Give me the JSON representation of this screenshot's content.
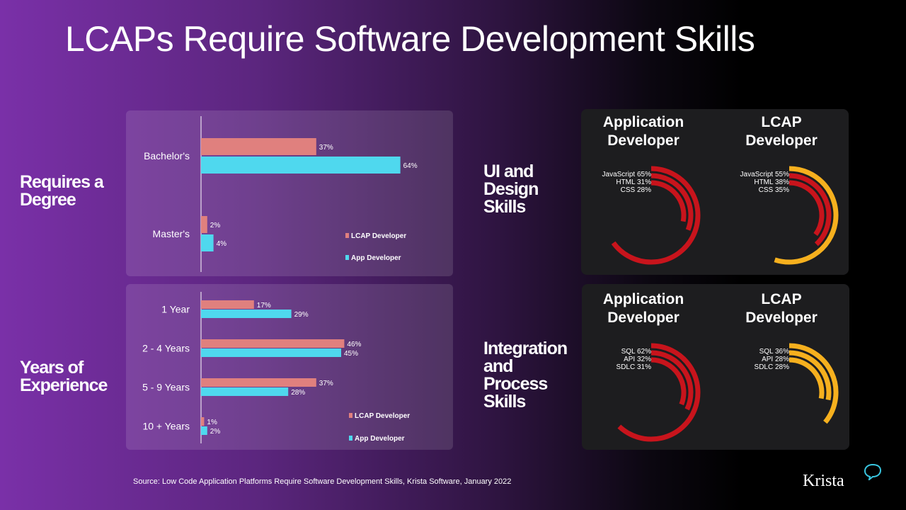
{
  "title": "LCAPs Require Software Development Skills",
  "labels": {
    "degree": [
      "Requires a",
      "Degree"
    ],
    "experience": [
      "Years of",
      "Experience"
    ],
    "ui": [
      "UI and",
      "Design",
      "Skills"
    ],
    "integration": [
      "Integration",
      "and",
      "Process",
      "Skills"
    ]
  },
  "columns": {
    "app": [
      "Application",
      "Developer"
    ],
    "lcap": [
      "LCAP",
      "Developer"
    ]
  },
  "colors": {
    "lcap": "#e0807e",
    "app": "#4fd8ee",
    "ring_red": "#c8141c",
    "ring_gold": "#f6b01e"
  },
  "chart_data": [
    {
      "id": "degree",
      "type": "bar",
      "orientation": "horizontal",
      "categories": [
        "Bachelor's",
        "Master's"
      ],
      "series": [
        {
          "name": "LCAP Developer",
          "values": [
            37,
            2
          ],
          "labels": [
            "37%",
            "2%"
          ]
        },
        {
          "name": "App Developer",
          "values": [
            64,
            4
          ],
          "labels": [
            "64%",
            "4%"
          ]
        }
      ]
    },
    {
      "id": "experience",
      "type": "bar",
      "orientation": "horizontal",
      "categories": [
        "1 Year",
        "2 - 4 Years",
        "5 - 9 Years",
        "10 + Years"
      ],
      "series": [
        {
          "name": "LCAP Developer",
          "values": [
            17,
            46,
            37,
            1
          ],
          "labels": [
            "17%",
            "46%",
            "37%",
            "1%"
          ]
        },
        {
          "name": "App Developer",
          "values": [
            29,
            45,
            28,
            2
          ],
          "labels": [
            "29%",
            "45%",
            "28%",
            "2%"
          ]
        }
      ]
    },
    {
      "id": "ui-app",
      "type": "radial-bar",
      "items": [
        {
          "label": "JavaScript 65%",
          "value": 65
        },
        {
          "label": "HTML 31%",
          "value": 31
        },
        {
          "label": "CSS 28%",
          "value": 28
        }
      ]
    },
    {
      "id": "ui-lcap",
      "type": "radial-bar",
      "items": [
        {
          "label": "JavaScript 55%",
          "value": 55
        },
        {
          "label": "HTML 38%",
          "value": 38
        },
        {
          "label": "CSS 35%",
          "value": 35
        }
      ]
    },
    {
      "id": "int-app",
      "type": "radial-bar",
      "items": [
        {
          "label": "SQL 62%",
          "value": 62
        },
        {
          "label": "API 32%",
          "value": 32
        },
        {
          "label": "SDLC 31%",
          "value": 31
        }
      ]
    },
    {
      "id": "int-lcap",
      "type": "radial-bar",
      "items": [
        {
          "label": "SQL 36%",
          "value": 36
        },
        {
          "label": "API 28%",
          "value": 28
        },
        {
          "label": "SDLC 28%",
          "value": 28
        }
      ]
    }
  ],
  "source": "Source: Low Code Application Platforms Require Software Development Skills, Krista Software, January 2022",
  "logo": "Krista"
}
